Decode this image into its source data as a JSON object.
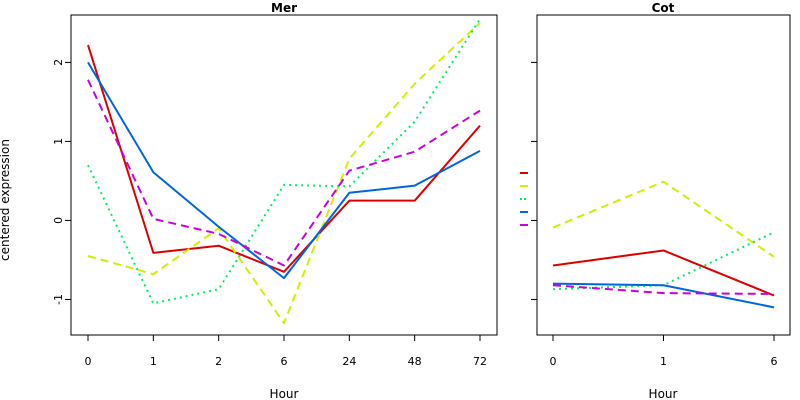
{
  "ylabel": "centered expression",
  "series_styles": [
    {
      "color": "#dd0000",
      "dash": "solid"
    },
    {
      "color": "#d4ee00",
      "dash": "dashed"
    },
    {
      "color": "#00ee60",
      "dash": "dotted"
    },
    {
      "color": "#0066dd",
      "dash": "solid"
    },
    {
      "color": "#cc00dd",
      "dash": "dashed"
    }
  ],
  "chart_data": [
    {
      "type": "line",
      "title": "Mer",
      "xlabel": "Hour",
      "categories": [
        "0",
        "1",
        "2",
        "6",
        "24",
        "48",
        "72"
      ],
      "ylim": [
        -1.45,
        2.6
      ],
      "yticks": [
        -1,
        0,
        1,
        2
      ],
      "series": [
        {
          "values": [
            2.22,
            -0.41,
            -0.32,
            -0.65,
            0.25,
            0.25,
            1.2
          ]
        },
        {
          "values": [
            -0.45,
            -0.68,
            -0.1,
            -1.3,
            0.78,
            1.73,
            2.5
          ]
        },
        {
          "values": [
            0.7,
            -1.05,
            -0.87,
            0.45,
            0.43,
            1.25,
            2.55
          ]
        },
        {
          "values": [
            2.0,
            0.61,
            -0.08,
            -0.73,
            0.35,
            0.44,
            0.88
          ]
        },
        {
          "values": [
            1.78,
            0.02,
            -0.17,
            -0.57,
            0.63,
            0.87,
            1.39
          ]
        }
      ]
    },
    {
      "type": "line",
      "title": "Cot",
      "xlabel": "Hour",
      "categories": [
        "0",
        "1",
        "6"
      ],
      "ylim": [
        -1.45,
        2.6
      ],
      "yticks": [
        -1,
        0,
        1,
        2
      ],
      "series": [
        {
          "values": [
            -0.57,
            -0.38,
            -0.95
          ]
        },
        {
          "values": [
            -0.09,
            0.49,
            -0.46
          ]
        },
        {
          "values": [
            -0.87,
            -0.82,
            -0.15
          ]
        },
        {
          "values": [
            -0.8,
            -0.82,
            -1.1
          ]
        },
        {
          "values": [
            -0.82,
            -0.92,
            -0.93
          ]
        }
      ]
    }
  ]
}
